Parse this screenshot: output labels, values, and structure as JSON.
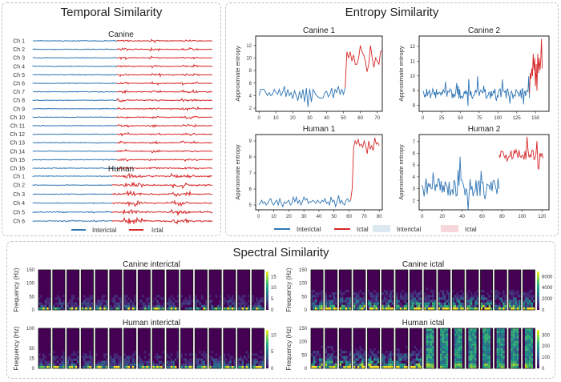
{
  "panels": {
    "temporal": {
      "title": "Temporal Similarity",
      "groups": [
        {
          "name": "Canine",
          "channels": [
            "Ch 1",
            "Ch 2",
            "Ch 3",
            "Ch 4",
            "Ch 5",
            "Ch 6",
            "Ch 7",
            "Ch 8",
            "Ch 9",
            "Ch 10",
            "Ch 11",
            "Ch 12",
            "Ch 13",
            "Ch 14",
            "Ch 15",
            "Ch 16"
          ]
        },
        {
          "name": "Human",
          "channels": [
            "Ch 1",
            "Ch 2",
            "Ch 3",
            "Ch 4",
            "Ch 5",
            "Ch 6"
          ]
        }
      ],
      "legend": [
        {
          "label": "Interictal",
          "color": "#2f75b5"
        },
        {
          "label": "Ictal",
          "color": "#d62728"
        }
      ]
    },
    "entropy": {
      "title": "Entropy Similarity",
      "ylabel": "Approximate entropy",
      "legend": [
        {
          "label": "Interictal",
          "type": "line",
          "color": "#2f75b5"
        },
        {
          "label": "Ictal",
          "type": "line",
          "color": "#d62728"
        },
        {
          "label": "Interictal",
          "type": "patch",
          "color": "#dce9f1"
        },
        {
          "label": "Ictal",
          "type": "patch",
          "color": "#f8d7dc"
        }
      ]
    },
    "spectral": {
      "title": "Spectral Similarity",
      "ylabel": "Frequency (Hz)",
      "count_per_group": 16
    }
  },
  "colors": {
    "interictal": "#2f75b5",
    "ictal": "#d62728",
    "viridis_base": "#440154"
  },
  "chart_data": [
    {
      "type": "line",
      "title": "Canine 1",
      "xlabel": "",
      "ylabel": "Approximate entropy",
      "xticks": [
        0,
        10,
        20,
        30,
        40,
        50,
        60,
        70
      ],
      "yticks": [
        2,
        4,
        6,
        8,
        10,
        12
      ],
      "xlim": [
        -2,
        73
      ],
      "ylim": [
        1.5,
        13.5
      ],
      "split_index": 51,
      "series": [
        {
          "name": "Interictal",
          "x_start": 0,
          "values": [
            4,
            5,
            5,
            5,
            4.5,
            4,
            4.5,
            4,
            4.2,
            5,
            4.5,
            4.2,
            5,
            4,
            4.5,
            5.5,
            3.8,
            5,
            4,
            4.5,
            3.5,
            4.8,
            4,
            3.2,
            4.7,
            3.5,
            5,
            3,
            5.2,
            2.2,
            5.1,
            3,
            5,
            4.5,
            4,
            3.8,
            3.6,
            3.6,
            3.7,
            4.5,
            4.7,
            3.8,
            4.2,
            5.2,
            3.6,
            5,
            4.5,
            5.5,
            4.2,
            5,
            4.2,
            5.2
          ]
        },
        {
          "name": "Ictal",
          "x_start": 51,
          "values": [
            5.2,
            11,
            10,
            11,
            9.5,
            10.5,
            9,
            9,
            10,
            12,
            11,
            10.5,
            9.5,
            7.8,
            9,
            12,
            10,
            8.5,
            10,
            9.5,
            9,
            11,
            11.2
          ]
        }
      ]
    },
    {
      "type": "line",
      "title": "Canine 2",
      "xlabel": "",
      "ylabel": "Approximate entropy",
      "xticks": [
        0,
        25,
        50,
        75,
        100,
        125,
        150
      ],
      "yticks": [
        8,
        9,
        10,
        11,
        12
      ],
      "xlim": [
        -5,
        168
      ],
      "ylim": [
        7.6,
        12.7
      ],
      "split_index": 142,
      "series": [
        {
          "name": "Interictal",
          "x_start": 0,
          "values_seed": 1,
          "mean": 8.8,
          "spread": 0.35,
          "count": 143
        },
        {
          "name": "Ictal",
          "x_start": 142,
          "values": [
            8.8,
            10.2,
            9.8,
            10.5,
            10,
            11.5,
            10.4,
            11.2,
            9.3,
            10.8,
            9,
            11.5,
            10.2,
            11.2,
            10.4,
            11,
            12.5,
            10.5
          ]
        }
      ]
    },
    {
      "type": "line",
      "title": "Human 1",
      "xlabel": "",
      "ylabel": "Approximate entropy",
      "xticks": [
        0,
        10,
        20,
        30,
        40,
        50,
        60,
        70,
        80
      ],
      "yticks": [
        5,
        6,
        7,
        8,
        9
      ],
      "xlim": [
        -2,
        82
      ],
      "ylim": [
        4.7,
        9.4
      ],
      "split_index": 61,
      "series": [
        {
          "name": "Interictal",
          "x_start": 0,
          "values": [
            5,
            5.1,
            5.3,
            5.1,
            5.2,
            5,
            5.1,
            5.3,
            5.4,
            5.1,
            5,
            5.2,
            5.3,
            5,
            5.4,
            5.1,
            4.9,
            5.2,
            5.1,
            5.2,
            5.3,
            5,
            5.1,
            5.5,
            5.2,
            5.5,
            5.1,
            5.3,
            5,
            5.2,
            5.5,
            5.3,
            5.4,
            5.1,
            5.2,
            5.2,
            5.3,
            5.2,
            5.1,
            5.3,
            5.2,
            5.1,
            5.3,
            5.2,
            5.4,
            5.1,
            5.2,
            5,
            5.5,
            5.2,
            5.3,
            4.9,
            5.2,
            5.6,
            5.1,
            5.3,
            5.1,
            5,
            5.3,
            5.4,
            5.2,
            5.3
          ]
        },
        {
          "name": "Ictal",
          "x_start": 61,
          "values": [
            5.3,
            6,
            8.6,
            9,
            8.8,
            9.1,
            8.7,
            8.8,
            8.6,
            9,
            8.7,
            8.2,
            9,
            8.5,
            8.7,
            8.4,
            9.2,
            8.8,
            8.9,
            8.7
          ]
        }
      ]
    },
    {
      "type": "line",
      "title": "Human 2",
      "xlabel": "",
      "ylabel": "Approximate entropy",
      "xticks": [
        0,
        20,
        40,
        60,
        80,
        100,
        120
      ],
      "yticks": [
        2,
        3,
        4,
        5,
        6,
        7
      ],
      "xlim": [
        -3,
        127
      ],
      "ylim": [
        1.2,
        7.6
      ],
      "split_index": 77,
      "series": [
        {
          "name": "Interictal",
          "x_start": 0,
          "values_seed": 2,
          "mean": 3.1,
          "spread": 0.8,
          "count": 78
        },
        {
          "name": "Ictal",
          "x_start": 77,
          "values_seed": 3,
          "mean": 5.9,
          "spread": 0.45,
          "count": 45
        }
      ]
    }
  ],
  "spectrograms": [
    {
      "title": "Canine interictal",
      "yticks": [
        0,
        50,
        100,
        150
      ],
      "colorbar_ticks": [
        0,
        5,
        10,
        15
      ],
      "intensity": 0.25
    },
    {
      "title": "Canine ictal",
      "yticks": [
        0,
        50,
        100,
        150
      ],
      "colorbar_ticks": [
        0,
        2000,
        4000,
        6000
      ],
      "intensity": 0.55
    },
    {
      "title": "Human interictal",
      "yticks": [
        0,
        25,
        50,
        100
      ],
      "colorbar_ticks": [
        0,
        5,
        10
      ],
      "intensity": 0.3
    },
    {
      "title": "Human ictal",
      "yticks": [
        0,
        50,
        100,
        150
      ],
      "colorbar_ticks": [
        0,
        100,
        200,
        300
      ],
      "intensity": 0.6,
      "bright_columns_from": 8
    }
  ]
}
